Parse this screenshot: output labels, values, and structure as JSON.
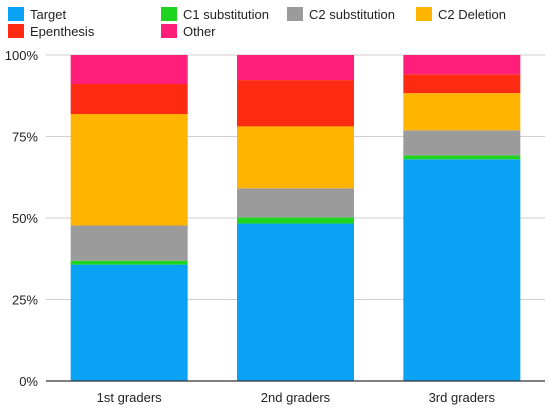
{
  "chart_data": {
    "type": "bar",
    "stacked": true,
    "categories": [
      "1st graders",
      "2nd graders",
      "3rd graders"
    ],
    "series": [
      {
        "name": "Target",
        "color": "#0aa2f5",
        "values": [
          35.7,
          48.3,
          68.0
        ]
      },
      {
        "name": "C1 substitution",
        "color": "#1fd41f",
        "values": [
          1.2,
          1.9,
          1.2
        ]
      },
      {
        "name": "C2 substitution",
        "color": "#9b9b9b",
        "values": [
          10.8,
          8.9,
          7.7
        ]
      },
      {
        "name": "C2 Deletion",
        "color": "#ffb400",
        "values": [
          34.2,
          19.0,
          11.4
        ]
      },
      {
        "name": "Epenthesis",
        "color": "#ff2a12",
        "values": [
          9.2,
          14.2,
          5.8
        ]
      },
      {
        "name": "Other",
        "color": "#ff1f7a",
        "values": [
          8.9,
          7.7,
          5.9
        ]
      }
    ],
    "yticks": [
      "0%",
      "25%",
      "50%",
      "75%",
      "100%"
    ],
    "ylim": [
      0,
      100
    ],
    "grid": true,
    "legend": "top"
  }
}
